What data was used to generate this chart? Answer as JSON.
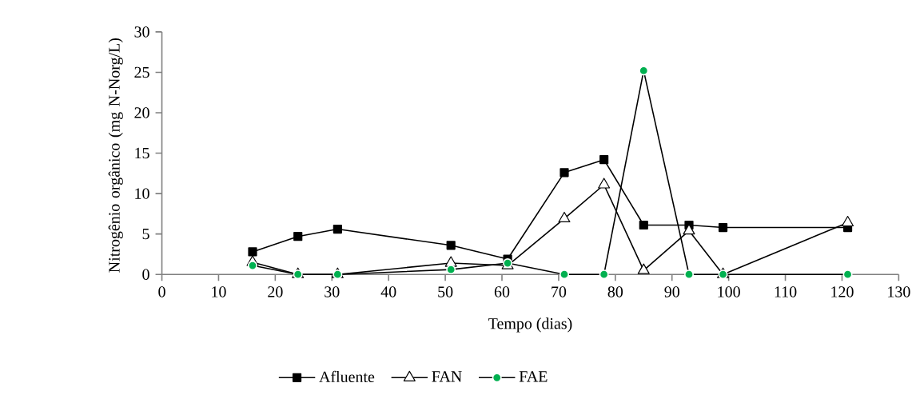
{
  "chart_data": {
    "type": "line",
    "xlabel": "Tempo (dias)",
    "ylabel": "Nitrogênio orgânico (mg N-Norg/L)",
    "x": [
      16,
      24,
      31,
      51,
      61,
      71,
      78,
      85,
      93,
      99,
      121
    ],
    "series": [
      {
        "name": "Afluente",
        "color": "#000000",
        "marker": "square",
        "values": [
          2.8,
          4.7,
          5.6,
          3.6,
          1.9,
          12.6,
          14.2,
          6.1,
          6.1,
          5.8,
          5.8
        ]
      },
      {
        "name": "FAN",
        "color": "#000000",
        "marker": "triangle",
        "values": [
          1.5,
          0,
          0,
          1.4,
          1.1,
          6.9,
          11.1,
          0.5,
          5.4,
          0,
          6.4
        ]
      },
      {
        "name": "FAE",
        "color": "#00b050",
        "marker": "circle",
        "values": [
          1.1,
          0,
          0,
          0.6,
          1.4,
          0,
          0,
          25.2,
          0,
          0,
          0
        ]
      }
    ],
    "xlim": [
      0,
      130
    ],
    "xticks": [
      0,
      10,
      20,
      30,
      40,
      50,
      60,
      70,
      80,
      90,
      100,
      110,
      120,
      130
    ],
    "ylim": [
      0,
      30
    ],
    "yticks": [
      0,
      5,
      10,
      15,
      20,
      25,
      30
    ],
    "grid": false,
    "legend": "bottom",
    "line_style": "solid"
  }
}
